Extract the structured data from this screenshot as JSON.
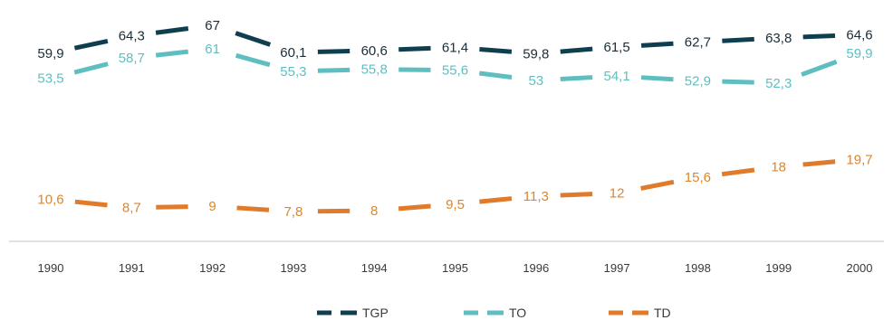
{
  "chart_data": {
    "type": "line",
    "title": "",
    "xlabel": "",
    "ylabel": "",
    "x": [
      "1990",
      "1991",
      "1992",
      "1993",
      "1994",
      "1995",
      "1996",
      "1997",
      "1998",
      "1999",
      "2000"
    ],
    "series": [
      {
        "name": "TGP",
        "color": "#0f3f4f",
        "values": [
          59.9,
          64.3,
          67,
          60.1,
          60.6,
          61.4,
          59.8,
          61.5,
          62.7,
          63.8,
          64.6
        ],
        "labels": [
          "59,9",
          "64,3",
          "67",
          "60,1",
          "60,6",
          "61,4",
          "59,8",
          "61,5",
          "62,7",
          "63,8",
          "64,6"
        ]
      },
      {
        "name": "TO",
        "color": "#5fbfc0",
        "values": [
          53.5,
          58.7,
          61,
          55.3,
          55.8,
          55.6,
          53,
          54.1,
          52.9,
          52.3,
          59.9
        ],
        "labels": [
          "53,5",
          "58,7",
          "61",
          "55,3",
          "55,8",
          "55,6",
          "53",
          "54,1",
          "52,9",
          "52,3",
          "59,9"
        ]
      },
      {
        "name": "TD",
        "color": "#e07b2c",
        "values": [
          10.6,
          8.7,
          9,
          7.8,
          8,
          9.5,
          11.3,
          12,
          15.6,
          18,
          19.7
        ],
        "labels": [
          "10,6",
          "8,7",
          "9",
          "7,8",
          "8",
          "9,5",
          "11,3",
          "12",
          "15,6",
          "18",
          "19,7"
        ]
      }
    ],
    "grid": false,
    "legend_position": "bottom-center"
  }
}
